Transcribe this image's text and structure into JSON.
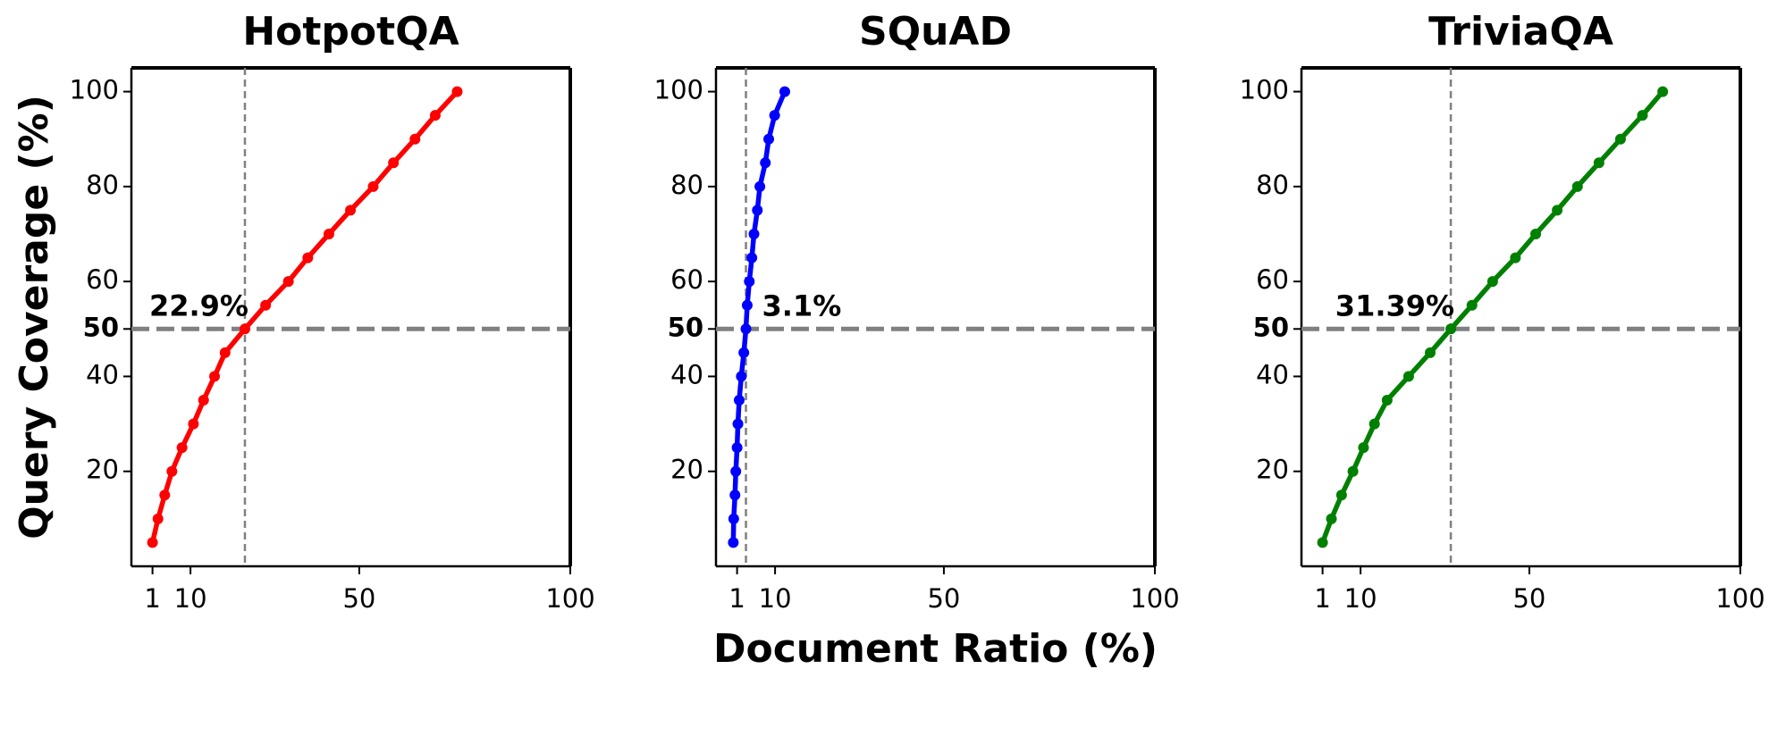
{
  "chart_data": [
    {
      "type": "line",
      "title": "HotpotQA",
      "y_label": "Query Coverage (%)",
      "x": [
        1.0,
        2.3,
        3.9,
        5.6,
        8.0,
        10.7,
        13.1,
        15.7,
        18.2,
        22.9,
        27.8,
        33.2,
        37.8,
        42.8,
        47.9,
        53.3,
        58.1,
        63.2,
        68.0,
        73.2
      ],
      "series": [
        {
          "name": "HotpotQA",
          "color": "#ff0000",
          "values": [
            5,
            10,
            15,
            20,
            25,
            30,
            35,
            40,
            45,
            50,
            55,
            60,
            65,
            70,
            75,
            80,
            85,
            90,
            95,
            100
          ]
        }
      ],
      "threshold": 50,
      "crossing": 22.9,
      "annotation": "22.9%",
      "xlim": [
        -4,
        100
      ],
      "xticks": [
        1,
        10,
        50,
        100
      ],
      "ylim": [
        0,
        105
      ],
      "yticks": [
        20,
        40,
        50,
        60,
        80,
        100
      ]
    },
    {
      "type": "line",
      "title": "SQuAD",
      "x_label": "Document Ratio (%)",
      "x": [
        0.1,
        0.2,
        0.5,
        0.7,
        1.0,
        1.2,
        1.5,
        2.0,
        2.6,
        3.1,
        3.4,
        3.9,
        4.5,
        5.0,
        5.8,
        6.4,
        7.7,
        8.5,
        9.9,
        12.3
      ],
      "series": [
        {
          "name": "SQuAD",
          "color": "#0000ff",
          "values": [
            5,
            10,
            15,
            20,
            25,
            30,
            35,
            40,
            45,
            50,
            55,
            60,
            65,
            70,
            75,
            80,
            85,
            90,
            95,
            100
          ]
        }
      ],
      "threshold": 50,
      "crossing": 3.1,
      "annotation": "3.1%",
      "xlim": [
        -4,
        100
      ],
      "xticks": [
        1,
        10,
        50,
        100
      ],
      "ylim": [
        0,
        105
      ],
      "yticks": [
        20,
        40,
        50,
        60,
        80,
        100
      ]
    },
    {
      "type": "line",
      "title": "TriviaQA",
      "x": [
        1.0,
        3.1,
        5.5,
        8.2,
        10.7,
        13.3,
        16.3,
        21.4,
        26.5,
        31.39,
        36.4,
        41.3,
        46.7,
        51.5,
        56.6,
        61.4,
        66.5,
        71.6,
        76.8,
        81.6
      ],
      "series": [
        {
          "name": "TriviaQA",
          "color": "#008000",
          "values": [
            5,
            10,
            15,
            20,
            25,
            30,
            35,
            40,
            45,
            50,
            55,
            60,
            65,
            70,
            75,
            80,
            85,
            90,
            95,
            100
          ]
        }
      ],
      "threshold": 50,
      "crossing": 31.39,
      "annotation": "31.39%",
      "xlim": [
        -4,
        100
      ],
      "xticks": [
        1,
        10,
        50,
        100
      ],
      "ylim": [
        0,
        105
      ],
      "yticks": [
        20,
        40,
        50,
        60,
        80,
        100
      ]
    }
  ]
}
